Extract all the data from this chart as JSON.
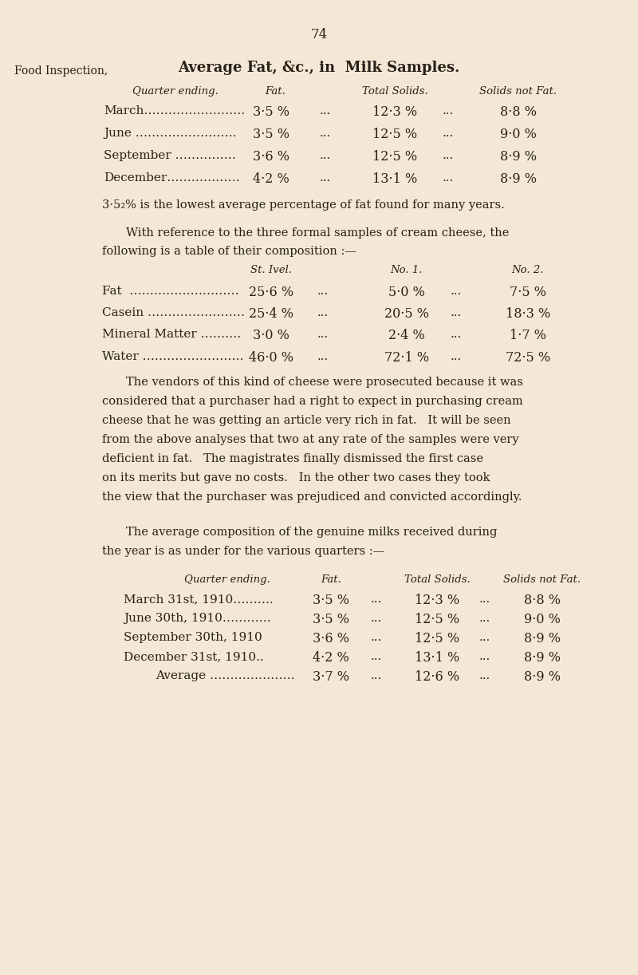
{
  "bg_color": "#f2e8d5",
  "text_color": "#2a2018",
  "page_number": "74",
  "left_label": "Food Inspection,",
  "main_title": "Average Fat, &c., in  Milk Samples.",
  "t1_header": [
    "Quarter ending.",
    "Fat.",
    "Total Solids.",
    "Solids not Fat."
  ],
  "t1_rows": [
    [
      "March…………………….",
      "3·5 %",
      "12·3 %",
      "8·8 %"
    ],
    [
      "June …………………….",
      "3·5 %",
      "12·5 %",
      "9·0 %"
    ],
    [
      "September ……………",
      "3·6 %",
      "12·5 %",
      "8·9 %"
    ],
    [
      "December………………",
      "4·2 %",
      "13·1 %",
      "8·9 %"
    ]
  ],
  "note1": "3·5₂% is the lowest average percentage of fat found for many years.",
  "para1_l1": "With reference to the three formal samples of cream cheese, the",
  "para1_l2": "following is a table of their composition :—",
  "t2_header": [
    "St. Ivel.",
    "No. 1.",
    "No. 2."
  ],
  "t2_rows": [
    [
      "Fat  ………………………",
      "25·6 %",
      "5·0 %",
      "7·5 %"
    ],
    [
      "Casein ……………………",
      "25·4 %",
      "20·5 %",
      "18·3 %"
    ],
    [
      "Mineral Matter ……….",
      "3·0 %",
      "2·4 %",
      "1·7 %"
    ],
    [
      "Water …………………….",
      "46·0 %",
      "72·1 %",
      "72·5 %"
    ]
  ],
  "para2": [
    "The vendors of this kind of cheese were prosecuted because it was",
    "considered that a purchaser had a right to expect in purchasing cream",
    "cheese that he was getting an article very rich in fat.   It will be seen",
    "from the above analyses that two at any rate of the samples were very",
    "deficient in fat.   The magistrates finally dismissed the first case",
    "on its merits but gave no costs.   In the other two cases they took",
    "the view that the purchaser was prejudiced and convicted accordingly."
  ],
  "para3_l1": "The average composition of the genuine milks received during",
  "para3_l2": "the year is as under for the various quarters :—",
  "t3_header": [
    "Quarter ending.",
    "Fat.",
    "Total Solids.",
    "Solids not Fat."
  ],
  "t3_rows": [
    [
      "March 31st, 1910……….",
      "3·5 %",
      "12·3 %",
      "8·8 %"
    ],
    [
      "June 30th, 1910…………",
      "3·5 %",
      "12·5 %",
      "9·0 %"
    ],
    [
      "September 30th, 1910",
      "3·6 %",
      "12·5 %",
      "8·9 %"
    ],
    [
      "December 31st, 1910..",
      "4·2 %",
      "13·1 %",
      "8·9 %"
    ],
    [
      "Average …………………",
      "3·7 %",
      "12·6 %",
      "8·9 %"
    ]
  ]
}
